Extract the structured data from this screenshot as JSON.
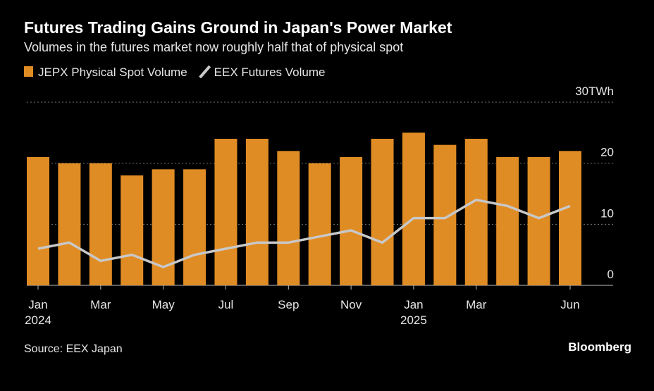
{
  "chart_data": {
    "type": "bar_line",
    "title": "Futures Trading Gains Ground in Japan's Power Market",
    "subtitle": "Volumes in the futures market now roughly half that of physical spot",
    "categories": [
      "Jan",
      null,
      "Mar",
      null,
      "May",
      null,
      "Jul",
      null,
      "Sep",
      null,
      "Nov",
      null,
      "Jan",
      null,
      "Mar",
      null,
      null,
      "Jun"
    ],
    "year_labels": [
      "2024",
      null,
      null,
      null,
      null,
      null,
      null,
      null,
      null,
      null,
      null,
      null,
      "2025",
      null,
      null,
      null,
      null,
      null
    ],
    "series": [
      {
        "name": "JEPX Physical Spot Volume",
        "type": "bar",
        "color": "#e08c24",
        "values": [
          21,
          20,
          20,
          18,
          19,
          19,
          24,
          24,
          22,
          20,
          21,
          24,
          25,
          23,
          24,
          21,
          21,
          22
        ]
      },
      {
        "name": "EEX Futures Volume",
        "type": "line",
        "color": "#c8c8c8",
        "values": [
          6,
          7,
          4,
          5,
          3,
          5,
          6,
          7,
          7,
          8,
          9,
          7,
          11,
          11,
          14,
          13,
          11,
          13
        ]
      }
    ],
    "ylim": [
      0,
      30
    ],
    "yticks": [
      0,
      10,
      20,
      {
        "value": 30,
        "label": "30TWh"
      }
    ],
    "grid": true,
    "source": "Source: EEX Japan",
    "brand": "Bloomberg"
  }
}
